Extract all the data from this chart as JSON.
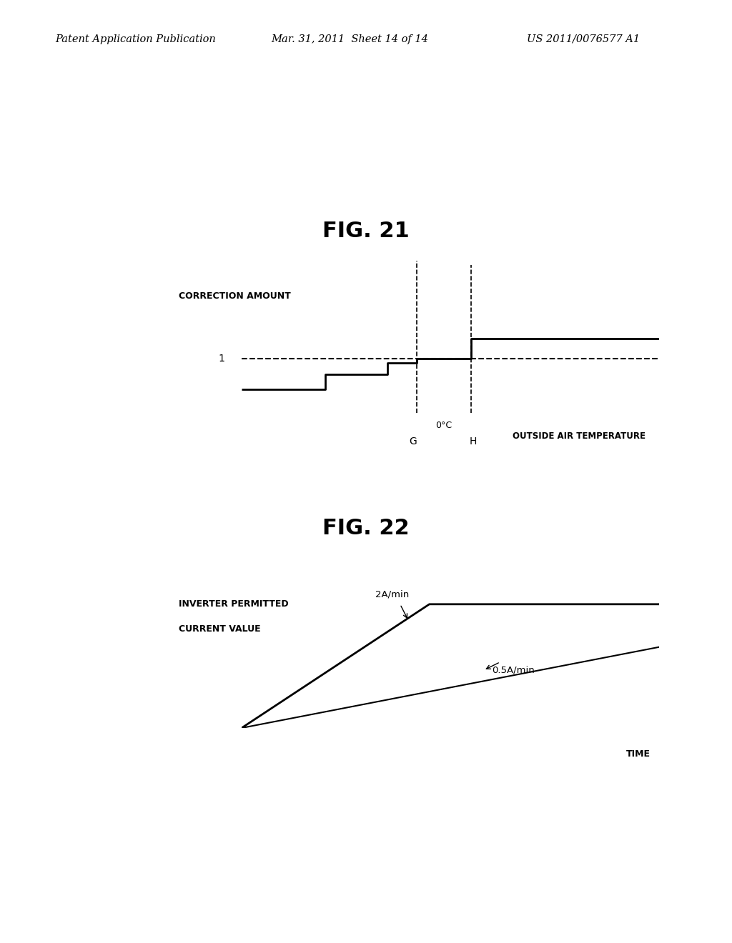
{
  "header_left": "Patent Application Publication",
  "header_mid": "Mar. 31, 2011  Sheet 14 of 14",
  "header_right": "US 2011/0076577 A1",
  "fig21_title": "FIG. 21",
  "fig22_title": "FIG. 22",
  "fig21_ylabel": "CORRECTION AMOUNT",
  "fig21_xlabel": "OUTSIDE AIR TEMPERATURE",
  "fig21_label1": "1",
  "fig21_label_0C": "0°C",
  "fig21_label_G": "G",
  "fig21_label_H": "H",
  "fig22_ylabel_line1": "INVERTER PERMITTED",
  "fig22_ylabel_line2": "CURRENT VALUE",
  "fig22_xlabel": "TIME",
  "fig22_label1": "2A/min",
  "fig22_label2": "0.5A/min",
  "background_color": "#ffffff",
  "line_color": "#000000"
}
